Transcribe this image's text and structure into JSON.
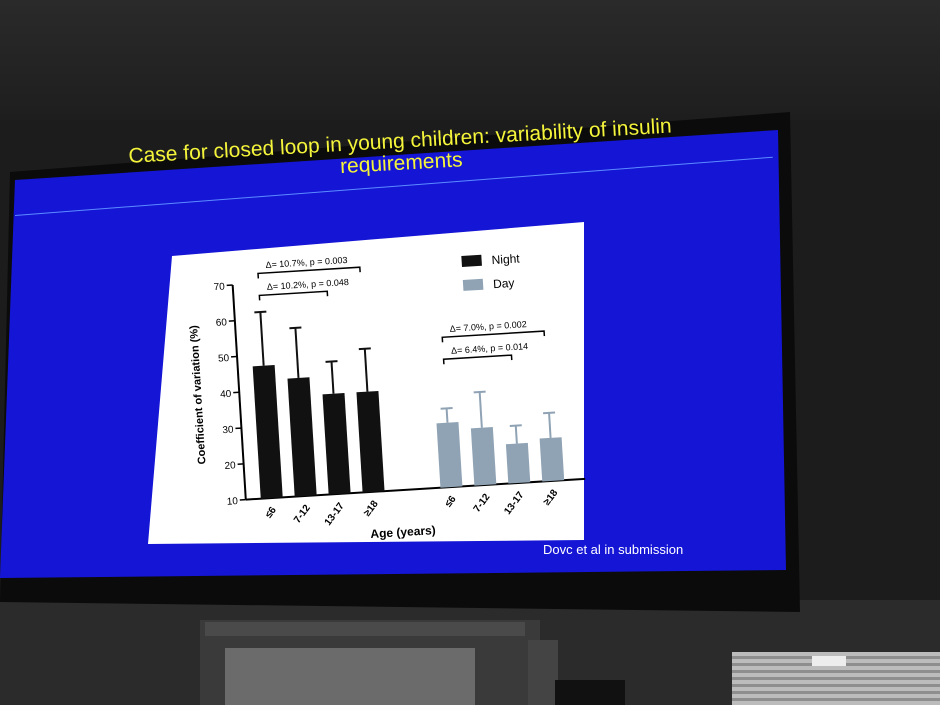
{
  "slide": {
    "title_line1": "Case for closed loop in young children: variability of insulin",
    "title_line2": "requirements",
    "citation": "Dovc et al in submission"
  },
  "chart_data": {
    "type": "bar",
    "ylabel": "Coefficient of variation (%)",
    "xlabel": "Age (years)",
    "ylim": [
      10,
      70
    ],
    "yticks": [
      10,
      20,
      30,
      40,
      50,
      60,
      70
    ],
    "legend_position": "top-right",
    "series": [
      {
        "name": "Night",
        "color": "#111111",
        "categories": [
          "≤6",
          "7-12",
          "13-17",
          "≥18"
        ],
        "values": [
          47,
          43,
          38,
          38
        ],
        "error_upper": [
          62,
          57,
          47,
          50
        ]
      },
      {
        "name": "Day",
        "color": "#8fa3b5",
        "categories": [
          "≤6",
          "7-12",
          "13-17",
          "≥18"
        ],
        "values": [
          28,
          26,
          21,
          22
        ],
        "error_upper": [
          32,
          36,
          26,
          29
        ]
      }
    ],
    "annotations": [
      {
        "series": "Night",
        "from": 0,
        "to": 3,
        "label": "Δ= 10.7%, p = 0.003",
        "level": 1
      },
      {
        "series": "Night",
        "from": 0,
        "to": 2,
        "label": "Δ= 10.2%, p = 0.048",
        "level": 0
      },
      {
        "series": "Day",
        "from": 0,
        "to": 3,
        "label": "Δ= 7.0%, p = 0.002",
        "level": 1
      },
      {
        "series": "Day",
        "from": 0,
        "to": 2,
        "label": "Δ= 6.4%, p = 0.014",
        "level": 0
      }
    ]
  }
}
